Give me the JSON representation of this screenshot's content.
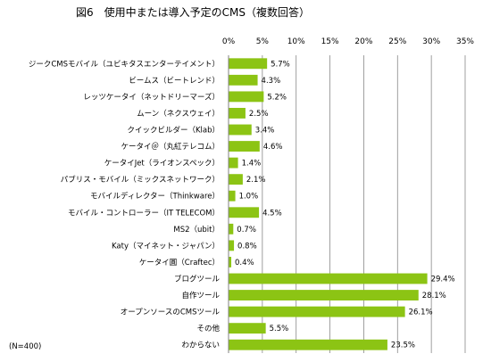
{
  "chart_data": {
    "type": "bar",
    "orientation": "horizontal",
    "title": "図6　使用中または導入予定のCMS（複数回答）",
    "note": "(N=400)",
    "xlim": [
      0,
      35
    ],
    "x_ticks": [
      "0%",
      "5%",
      "10%",
      "15%",
      "20%",
      "25%",
      "30%",
      "35%"
    ],
    "grid": "vertical gridlines at each tick",
    "bar_color": "#8cc414",
    "categories": [
      "ジークCMSモバイル（ユビキタスエンターテイメント）",
      "ビームス（ビートレンド）",
      "レッツケータイ（ネットドリーマーズ）",
      "ムーン（ネクスウェイ）",
      "クイックビルダー（Klab）",
      "ケータイ＠（丸紅テレコム）",
      "ケータイJet（ライオンスペック）",
      "パブリス・モバイル（ミックスネットワーク）",
      "モバイルディレクター（Thinkware）",
      "モバイル・コントローラー（IT TELECOM）",
      "MS2（ubit）",
      "Katy（マイネット・ジャパン）",
      "ケータイ圓（Craftec）",
      "ブログツール",
      "自作ツール",
      "オープンソースのCMSツール",
      "その他",
      "わからない"
    ],
    "values": [
      5.7,
      4.3,
      5.2,
      2.5,
      3.4,
      4.6,
      1.4,
      2.1,
      1.0,
      4.5,
      0.7,
      0.8,
      0.4,
      29.4,
      28.1,
      26.1,
      5.5,
      23.5
    ],
    "value_labels": [
      "5.7%",
      "4.3%",
      "5.2%",
      "2.5%",
      "3.4%",
      "4.6%",
      "1.4%",
      "2.1%",
      "1.0%",
      "4.5%",
      "0.7%",
      "0.8%",
      "0.4%",
      "29.4%",
      "28.1%",
      "26.1%",
      "5.5%",
      "23.5%"
    ]
  }
}
